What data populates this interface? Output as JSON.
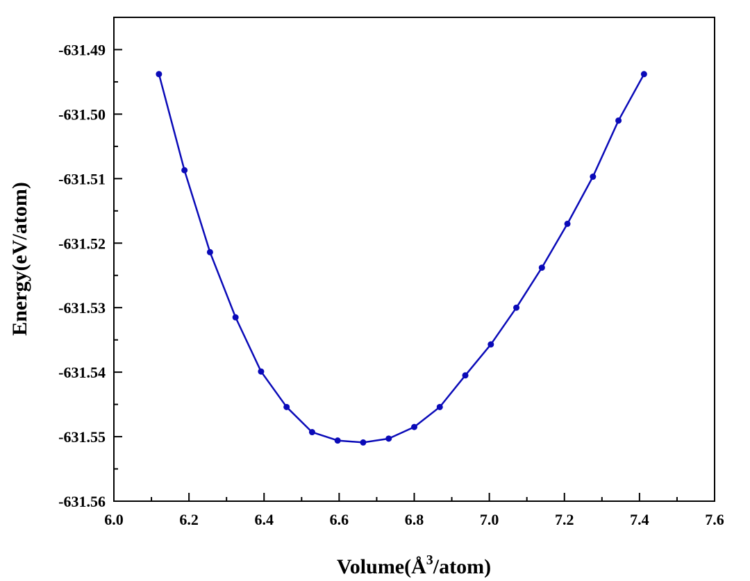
{
  "chart_data": {
    "type": "line",
    "xlabel": "Volume(Å³/atom)",
    "xlabel_parts": {
      "prefix": "Volume(Å",
      "sup": "3",
      "suffix": "/atom)"
    },
    "ylabel": "Energy(eV/atom)",
    "xlim": [
      6.0,
      7.6
    ],
    "ylim": [
      -631.56,
      -631.485
    ],
    "x_ticks": [
      "6.0",
      "6.2",
      "6.4",
      "6.6",
      "6.8",
      "7.0",
      "7.2",
      "7.4",
      "7.6"
    ],
    "y_ticks": [
      "-631.49",
      "-631.50",
      "-631.51",
      "-631.52",
      "-631.53",
      "-631.54",
      "-631.55",
      "-631.56"
    ],
    "grid": false,
    "legend": "none",
    "series_color": "#0A0AB8",
    "series": [
      {
        "x": [
          6.12,
          6.188,
          6.256,
          6.324,
          6.392,
          6.46,
          6.528,
          6.596,
          6.664,
          6.732,
          6.8,
          6.868,
          6.936,
          7.004,
          7.072,
          7.14,
          7.208,
          7.276,
          7.344,
          7.412
        ],
        "y": [
          -631.4938,
          -631.5087,
          -631.5214,
          -631.5315,
          -631.5399,
          -631.5454,
          -631.5493,
          -631.5506,
          -631.5509,
          -631.5503,
          -631.5485,
          -631.5454,
          -631.5405,
          -631.5357,
          -631.53,
          -631.5238,
          -631.517,
          -631.5097,
          -631.501,
          -631.4938
        ]
      }
    ]
  }
}
